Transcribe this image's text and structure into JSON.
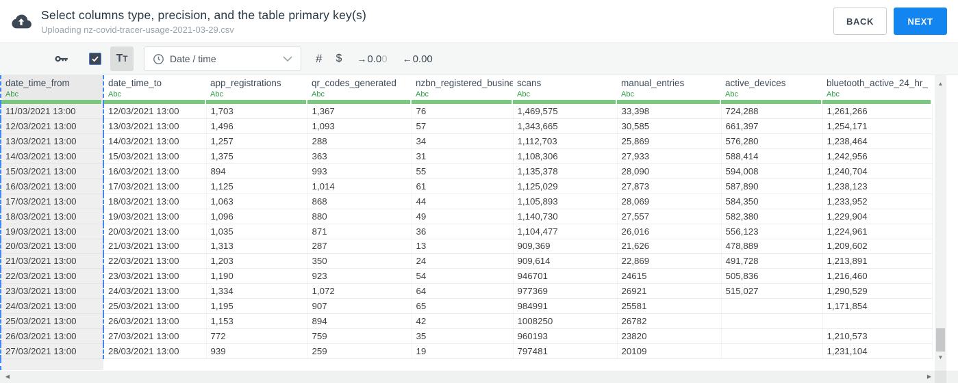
{
  "header": {
    "title": "Select columns type, precision, and the table primary key(s)",
    "subtitle": "Uploading nz-covid-tracer-usage-2021-03-29.csv",
    "back_label": "BACK",
    "next_label": "NEXT"
  },
  "toolbar": {
    "text_type": {
      "big": "T",
      "small": "T"
    },
    "type_dropdown_value": "Date / time",
    "number_label": "#",
    "currency_label": "$",
    "increase_decimal": {
      "arrow": "→",
      "dark": "0.0",
      "light": "0"
    },
    "decrease_decimal": {
      "arrow": "←",
      "dark": "0.00",
      "light": ""
    }
  },
  "icons": {
    "scroll_up": "▲",
    "scroll_down": "▼",
    "scroll_left": "◀",
    "scroll_right": "▶"
  },
  "table": {
    "columns": [
      {
        "name": "date_time_from",
        "type": "Abc",
        "selected": true
      },
      {
        "name": "date_time_to",
        "type": "Abc",
        "selected": false
      },
      {
        "name": "app_registrations",
        "type": "Abc",
        "selected": false
      },
      {
        "name": "qr_codes_generated",
        "type": "Abc",
        "selected": false
      },
      {
        "name": "nzbn_registered_busine",
        "type": "Abc",
        "selected": false
      },
      {
        "name": "scans",
        "type": "Abc",
        "selected": false
      },
      {
        "name": "manual_entries",
        "type": "Abc",
        "selected": false
      },
      {
        "name": "active_devices",
        "type": "Abc",
        "selected": false
      },
      {
        "name": "bluetooth_active_24_hr_",
        "type": "Abc",
        "selected": false
      }
    ],
    "rows": [
      [
        "11/03/2021 13:00",
        "12/03/2021 13:00",
        "1,703",
        "1,367",
        "76",
        "1,469,575",
        "33,398",
        "724,288",
        "1,261,266"
      ],
      [
        "12/03/2021 13:00",
        "13/03/2021 13:00",
        "1,496",
        "1,093",
        "57",
        "1,343,665",
        "30,585",
        "661,397",
        "1,254,171"
      ],
      [
        "13/03/2021 13:00",
        "14/03/2021 13:00",
        "1,257",
        "288",
        "34",
        "1,112,703",
        "25,869",
        "576,280",
        "1,238,464"
      ],
      [
        "14/03/2021 13:00",
        "15/03/2021 13:00",
        "1,375",
        "363",
        "31",
        "1,108,306",
        "27,933",
        "588,414",
        "1,242,956"
      ],
      [
        "15/03/2021 13:00",
        "16/03/2021 13:00",
        "894",
        "993",
        "55",
        "1,135,378",
        "28,090",
        "594,008",
        "1,240,704"
      ],
      [
        "16/03/2021 13:00",
        "17/03/2021 13:00",
        "1,125",
        "1,014",
        "61",
        "1,125,029",
        "27,873",
        "587,890",
        "1,238,123"
      ],
      [
        "17/03/2021 13:00",
        "18/03/2021 13:00",
        "1,063",
        "868",
        "44",
        "1,105,893",
        "28,069",
        "584,350",
        "1,233,952"
      ],
      [
        "18/03/2021 13:00",
        "19/03/2021 13:00",
        "1,096",
        "880",
        "49",
        "1,140,730",
        "27,557",
        "582,380",
        "1,229,904"
      ],
      [
        "19/03/2021 13:00",
        "20/03/2021 13:00",
        "1,035",
        "871",
        "36",
        "1,104,477",
        "26,016",
        "556,123",
        "1,224,961"
      ],
      [
        "20/03/2021 13:00",
        "21/03/2021 13:00",
        "1,313",
        "287",
        "13",
        "909,369",
        "21,626",
        "478,889",
        "1,209,602"
      ],
      [
        "21/03/2021 13:00",
        "22/03/2021 13:00",
        "1,203",
        "350",
        "24",
        "909,614",
        "22,869",
        "491,728",
        "1,213,891"
      ],
      [
        "22/03/2021 13:00",
        "23/03/2021 13:00",
        "1,190",
        "923",
        "54",
        "946701",
        "24615",
        "505,836",
        "1,216,460"
      ],
      [
        "23/03/2021 13:00",
        "24/03/2021 13:00",
        "1,334",
        "1,072",
        "64",
        "977369",
        "26921",
        "515,027",
        "1,290,529"
      ],
      [
        "24/03/2021 13:00",
        "25/03/2021 13:00",
        "1,195",
        "907",
        "65",
        "984991",
        "25581",
        "",
        "1,171,854"
      ],
      [
        "25/03/2021 13:00",
        "26/03/2021 13:00",
        "1,153",
        "894",
        "42",
        "1008250",
        "26782",
        "",
        ""
      ],
      [
        "26/03/2021 13:00",
        "27/03/2021 13:00",
        "772",
        "759",
        "35",
        "960193",
        "23820",
        "",
        "1,210,573"
      ],
      [
        "27/03/2021 13:00",
        "28/03/2021 13:00",
        "939",
        "259",
        "19",
        "797481",
        "20109",
        "",
        "1,231,104"
      ]
    ]
  },
  "colors": {
    "accent_blue": "#1285f0",
    "selection_border_blue": "#4285f4",
    "type_label_green": "#2f9e44",
    "header_underline_green": "#7cc77f",
    "selected_column_bg": "#ececec"
  }
}
